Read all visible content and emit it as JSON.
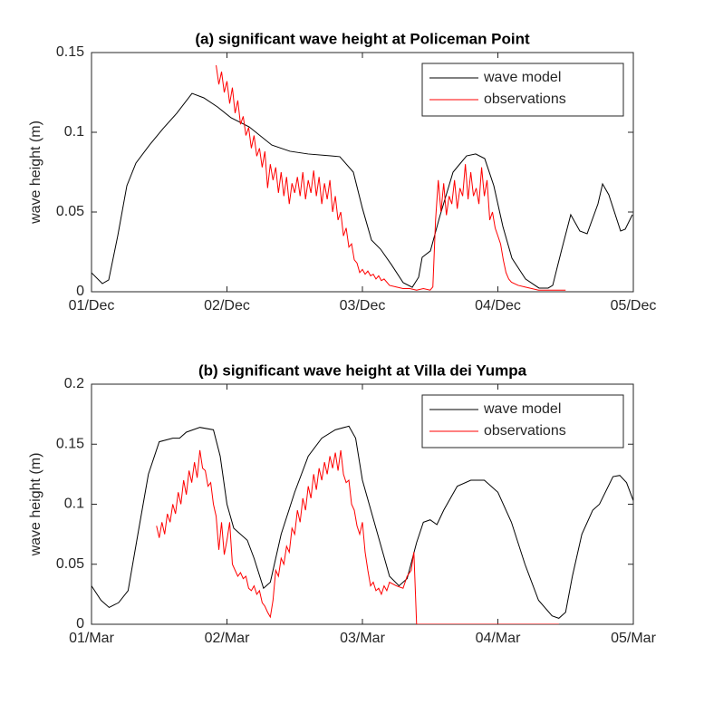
{
  "chart_data": [
    {
      "type": "line",
      "title": "(a) significant wave height at Policeman Point",
      "y_label": "wave height (m)",
      "xlim": [
        0,
        4
      ],
      "xticks": [
        {
          "value": 0,
          "label": "01/Dec"
        },
        {
          "value": 1,
          "label": "02/Dec"
        },
        {
          "value": 2,
          "label": "03/Dec"
        },
        {
          "value": 3,
          "label": "04/Dec"
        },
        {
          "value": 4,
          "label": "05/Dec"
        }
      ],
      "ylim": [
        0,
        0.15
      ],
      "yticks": [
        0,
        0.05,
        0.1,
        0.15
      ],
      "legend": "upper right",
      "series": [
        {
          "name": "wave model",
          "color": "#000000",
          "x": [
            0,
            0.08,
            0.127,
            0.194,
            0.261,
            0.328,
            0.428,
            0.528,
            0.629,
            0.742,
            0.829,
            0.93,
            1.03,
            1.164,
            1.331,
            1.465,
            1.599,
            1.766,
            1.833,
            1.933,
            2.0,
            2.067,
            2.134,
            2.214,
            2.301,
            2.368,
            2.415,
            2.441,
            2.502,
            2.569,
            2.669,
            2.769,
            2.836,
            2.903,
            2.97,
            3.037,
            3.104,
            3.204,
            3.304,
            3.371,
            3.405,
            3.438,
            3.472,
            3.538,
            3.605,
            3.659,
            3.739,
            3.773,
            3.819,
            3.906,
            3.94,
            3.993
          ],
          "values": [
            0.0119,
            0.0051,
            0.0074,
            0.0352,
            0.0665,
            0.0807,
            0.092,
            0.1023,
            0.1119,
            0.1244,
            0.1216,
            0.1159,
            0.1091,
            0.1034,
            0.092,
            0.0881,
            0.0864,
            0.0852,
            0.0847,
            0.075,
            0.0523,
            0.0324,
            0.0267,
            0.017,
            0.0057,
            0.0028,
            0.0091,
            0.0216,
            0.0256,
            0.0466,
            0.075,
            0.0852,
            0.0864,
            0.0835,
            0.0665,
            0.0409,
            0.021,
            0.008,
            0.0023,
            0.0023,
            0.004,
            0.0153,
            0.0267,
            0.0483,
            0.0381,
            0.0364,
            0.0551,
            0.0676,
            0.0608,
            0.0381,
            0.0392,
            0.0483
          ]
        },
        {
          "name": "observations",
          "color": "#ff0000",
          "x": [
            0.92,
            0.94,
            0.96,
            0.98,
            1.0,
            1.02,
            1.04,
            1.06,
            1.08,
            1.1,
            1.12,
            1.14,
            1.16,
            1.18,
            1.2,
            1.22,
            1.24,
            1.26,
            1.28,
            1.3,
            1.32,
            1.34,
            1.36,
            1.38,
            1.4,
            1.42,
            1.44,
            1.46,
            1.48,
            1.5,
            1.52,
            1.54,
            1.56,
            1.58,
            1.6,
            1.62,
            1.64,
            1.66,
            1.68,
            1.7,
            1.72,
            1.74,
            1.76,
            1.78,
            1.8,
            1.82,
            1.84,
            1.86,
            1.88,
            1.9,
            1.92,
            1.94,
            1.96,
            1.98,
            2.0,
            2.02,
            2.04,
            2.06,
            2.08,
            2.1,
            2.12,
            2.14,
            2.16,
            2.2,
            2.25,
            2.3,
            2.35,
            2.4,
            2.45,
            2.5,
            2.52,
            2.54,
            2.56,
            2.58,
            2.6,
            2.62,
            2.64,
            2.66,
            2.68,
            2.7,
            2.72,
            2.74,
            2.76,
            2.78,
            2.8,
            2.82,
            2.84,
            2.86,
            2.88,
            2.9,
            2.92,
            2.94,
            2.96,
            2.98,
            3.0,
            3.02,
            3.04,
            3.06,
            3.08,
            3.1,
            3.15,
            3.2,
            3.25,
            3.3,
            3.4,
            3.5
          ],
          "values": [
            0.142,
            0.13,
            0.138,
            0.125,
            0.132,
            0.118,
            0.128,
            0.112,
            0.12,
            0.105,
            0.11,
            0.098,
            0.103,
            0.09,
            0.098,
            0.085,
            0.09,
            0.078,
            0.088,
            0.065,
            0.08,
            0.07,
            0.078,
            0.062,
            0.075,
            0.06,
            0.072,
            0.055,
            0.068,
            0.062,
            0.072,
            0.06,
            0.075,
            0.058,
            0.07,
            0.062,
            0.076,
            0.06,
            0.072,
            0.055,
            0.068,
            0.058,
            0.07,
            0.05,
            0.06,
            0.045,
            0.05,
            0.035,
            0.04,
            0.028,
            0.03,
            0.02,
            0.018,
            0.012,
            0.014,
            0.011,
            0.013,
            0.01,
            0.011,
            0.008,
            0.01,
            0.007,
            0.008,
            0.004,
            0.003,
            0.002,
            0.002,
            0.001,
            0.002,
            0.001,
            0.003,
            0.045,
            0.07,
            0.05,
            0.068,
            0.048,
            0.06,
            0.055,
            0.07,
            0.052,
            0.065,
            0.06,
            0.08,
            0.058,
            0.075,
            0.06,
            0.065,
            0.055,
            0.078,
            0.06,
            0.07,
            0.045,
            0.05,
            0.04,
            0.035,
            0.03,
            0.02,
            0.012,
            0.008,
            0.006,
            0.004,
            0.003,
            0.002,
            0.001,
            0.001,
            0.001
          ]
        }
      ]
    },
    {
      "type": "line",
      "title": "(b) significant wave height at Villa dei Yumpa",
      "y_label": "wave height (m)",
      "xlim": [
        0,
        4
      ],
      "xticks": [
        {
          "value": 0,
          "label": "01/Mar"
        },
        {
          "value": 1,
          "label": "02/Mar"
        },
        {
          "value": 2,
          "label": "03/Mar"
        },
        {
          "value": 3,
          "label": "04/Mar"
        },
        {
          "value": 4,
          "label": "05/Mar"
        }
      ],
      "ylim": [
        0,
        0.2
      ],
      "yticks": [
        0,
        0.05,
        0.1,
        0.15,
        0.2
      ],
      "legend": "upper right",
      "series": [
        {
          "name": "wave model",
          "color": "#000000",
          "x": [
            0,
            0.07,
            0.13,
            0.2,
            0.27,
            0.35,
            0.42,
            0.5,
            0.6,
            0.65,
            0.7,
            0.8,
            0.9,
            0.95,
            1.0,
            1.05,
            1.15,
            1.2,
            1.27,
            1.32,
            1.4,
            1.5,
            1.6,
            1.7,
            1.8,
            1.9,
            1.95,
            2.0,
            2.1,
            2.2,
            2.27,
            2.33,
            2.4,
            2.45,
            2.5,
            2.55,
            2.6,
            2.7,
            2.8,
            2.9,
            3.0,
            3.1,
            3.2,
            3.3,
            3.4,
            3.45,
            3.5,
            3.55,
            3.62,
            3.7,
            3.75,
            3.85,
            3.9,
            3.95,
            4.0
          ],
          "values": [
            0.032,
            0.02,
            0.014,
            0.018,
            0.028,
            0.08,
            0.125,
            0.152,
            0.155,
            0.155,
            0.16,
            0.164,
            0.162,
            0.14,
            0.1,
            0.08,
            0.07,
            0.055,
            0.03,
            0.035,
            0.075,
            0.11,
            0.14,
            0.155,
            0.162,
            0.165,
            0.155,
            0.12,
            0.08,
            0.04,
            0.032,
            0.038,
            0.068,
            0.085,
            0.087,
            0.083,
            0.095,
            0.115,
            0.12,
            0.12,
            0.11,
            0.085,
            0.05,
            0.02,
            0.007,
            0.005,
            0.01,
            0.04,
            0.075,
            0.095,
            0.1,
            0.123,
            0.124,
            0.118,
            0.103
          ]
        },
        {
          "name": "observations",
          "color": "#ff0000",
          "x": [
            0.48,
            0.5,
            0.52,
            0.54,
            0.56,
            0.58,
            0.6,
            0.62,
            0.64,
            0.66,
            0.68,
            0.7,
            0.72,
            0.74,
            0.76,
            0.78,
            0.8,
            0.82,
            0.84,
            0.86,
            0.88,
            0.9,
            0.92,
            0.94,
            0.96,
            0.98,
            1.0,
            1.02,
            1.04,
            1.06,
            1.08,
            1.1,
            1.12,
            1.14,
            1.16,
            1.18,
            1.2,
            1.22,
            1.24,
            1.26,
            1.28,
            1.3,
            1.32,
            1.34,
            1.36,
            1.38,
            1.4,
            1.42,
            1.44,
            1.46,
            1.48,
            1.5,
            1.52,
            1.54,
            1.56,
            1.58,
            1.6,
            1.62,
            1.64,
            1.66,
            1.68,
            1.7,
            1.72,
            1.74,
            1.76,
            1.78,
            1.8,
            1.82,
            1.84,
            1.86,
            1.88,
            1.9,
            1.92,
            1.94,
            1.96,
            1.98,
            2.0,
            2.02,
            2.04,
            2.06,
            2.08,
            2.1,
            2.12,
            2.14,
            2.16,
            2.18,
            2.2,
            2.25,
            2.3,
            2.33,
            2.36,
            2.38,
            2.4,
            3.45
          ],
          "values": [
            0.082,
            0.072,
            0.085,
            0.075,
            0.092,
            0.085,
            0.1,
            0.092,
            0.11,
            0.1,
            0.12,
            0.108,
            0.128,
            0.118,
            0.135,
            0.122,
            0.145,
            0.13,
            0.128,
            0.115,
            0.118,
            0.1,
            0.09,
            0.062,
            0.085,
            0.058,
            0.07,
            0.085,
            0.05,
            0.045,
            0.04,
            0.043,
            0.038,
            0.04,
            0.03,
            0.028,
            0.032,
            0.025,
            0.028,
            0.018,
            0.015,
            0.01,
            0.006,
            0.02,
            0.045,
            0.04,
            0.055,
            0.05,
            0.065,
            0.06,
            0.08,
            0.075,
            0.095,
            0.085,
            0.105,
            0.095,
            0.115,
            0.105,
            0.125,
            0.112,
            0.13,
            0.12,
            0.135,
            0.125,
            0.14,
            0.13,
            0.143,
            0.128,
            0.145,
            0.125,
            0.118,
            0.12,
            0.1,
            0.095,
            0.082,
            0.075,
            0.085,
            0.06,
            0.045,
            0.032,
            0.035,
            0.028,
            0.03,
            0.025,
            0.032,
            0.028,
            0.035,
            0.032,
            0.03,
            0.04,
            0.045,
            0.06,
            0,
            0
          ]
        }
      ]
    }
  ]
}
